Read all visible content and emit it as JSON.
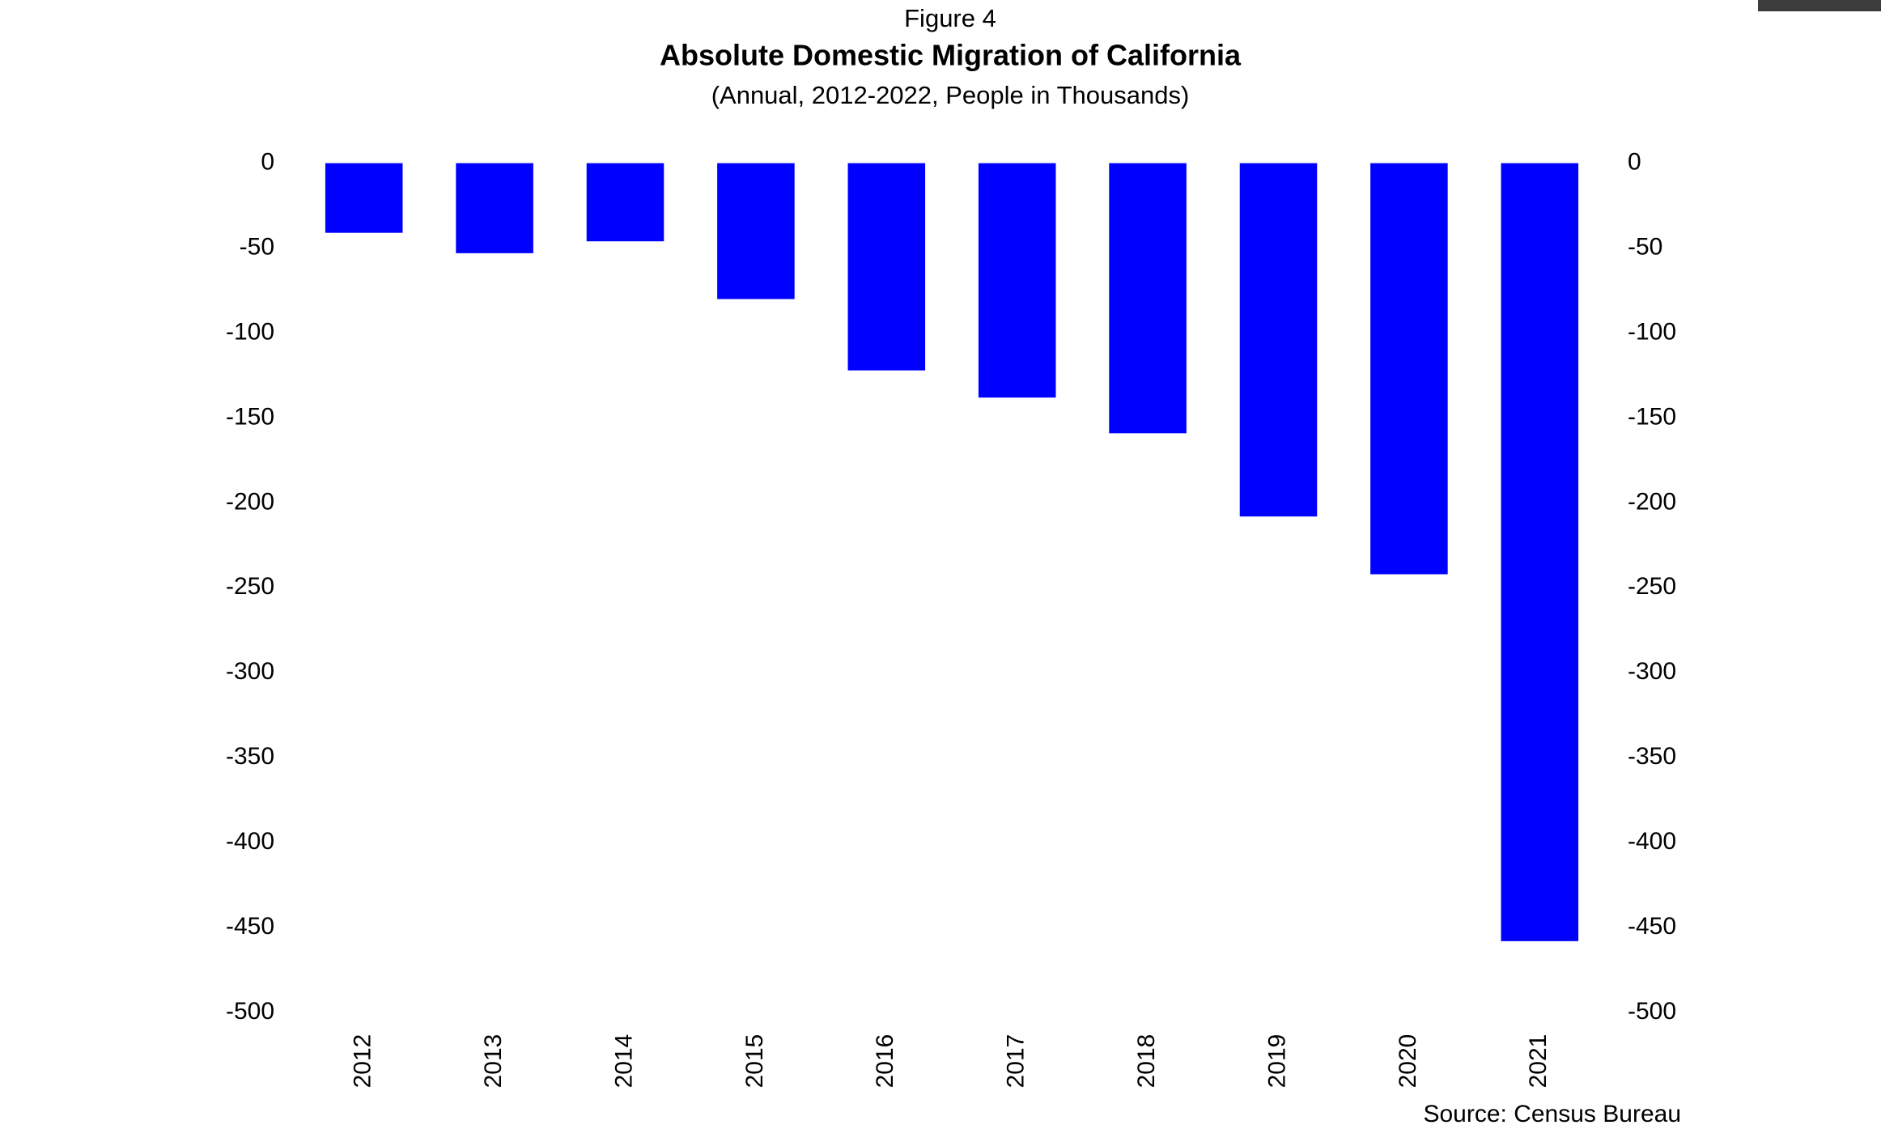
{
  "chart_data": {
    "type": "bar",
    "figure_label": "Figure 4",
    "title": "Absolute Domestic Migration of California",
    "subtitle": "(Annual, 2012-2022, People in Thousands)",
    "source": "Source: Census Bureau",
    "categories": [
      "2012",
      "2013",
      "2014",
      "2015",
      "2016",
      "2017",
      "2018",
      "2019",
      "2020",
      "2021"
    ],
    "values": [
      -41,
      -53,
      -46,
      -80,
      -122,
      -138,
      -159,
      -208,
      -242,
      -458
    ],
    "color": "#0000ff",
    "ylim": [
      -500,
      0
    ],
    "yticks": [
      0,
      -50,
      -100,
      -150,
      -200,
      -250,
      -300,
      -350,
      -400,
      -450,
      -500
    ],
    "y2lim": [
      -500,
      0
    ],
    "y2ticks": [
      0,
      -50,
      -100,
      -150,
      -200,
      -250,
      -300,
      -350,
      -400,
      -450,
      -500
    ],
    "grid": false
  }
}
